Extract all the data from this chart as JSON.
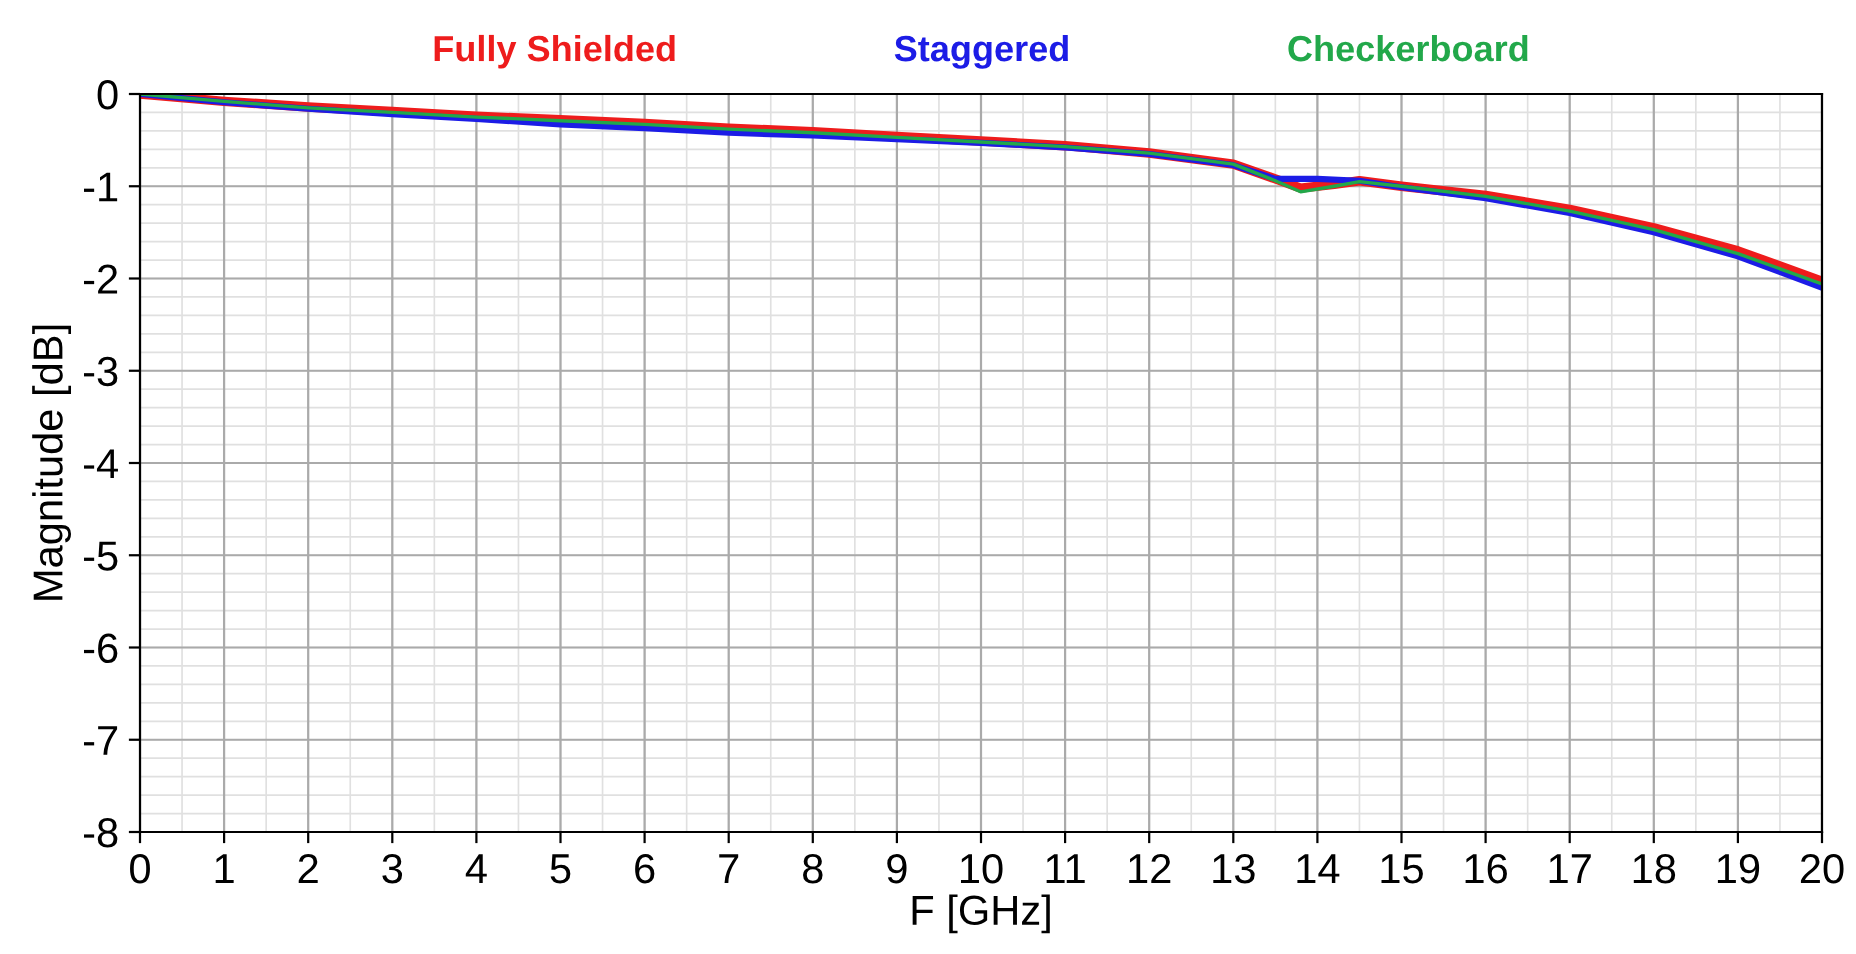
{
  "chart_data": {
    "type": "line",
    "xlabel": "F [GHz]",
    "ylabel": "Magnitude [dB]",
    "xlim": [
      0,
      20
    ],
    "ylim": [
      -8,
      0
    ],
    "xticks": [
      0,
      1,
      2,
      3,
      4,
      5,
      6,
      7,
      8,
      9,
      10,
      11,
      12,
      13,
      14,
      15,
      16,
      17,
      18,
      19,
      20
    ],
    "yticks": [
      -8,
      -7,
      -6,
      -5,
      -4,
      -3,
      -2,
      -1,
      0
    ],
    "grid": true,
    "legend": "top",
    "line_style": "solid",
    "marker": "none",
    "series": [
      {
        "name": "Fully Shielded",
        "color": "#ee1c1c",
        "x": [
          0,
          1,
          2,
          3,
          4,
          5,
          6,
          7,
          8,
          9,
          10,
          11,
          12,
          13,
          13.5,
          13.8,
          14.2,
          14.5,
          15,
          16,
          17,
          18,
          19,
          20
        ],
        "values": [
          0,
          -0.08,
          -0.14,
          -0.19,
          -0.24,
          -0.28,
          -0.32,
          -0.37,
          -0.41,
          -0.46,
          -0.51,
          -0.56,
          -0.64,
          -0.76,
          -0.92,
          -1.02,
          -0.98,
          -0.94,
          -1.0,
          -1.1,
          -1.25,
          -1.45,
          -1.7,
          -2.03
        ]
      },
      {
        "name": "Staggered",
        "color": "#1c1ce6",
        "x": [
          0,
          1,
          2,
          3,
          4,
          5,
          6,
          7,
          8,
          9,
          10,
          11,
          12,
          13,
          13.5,
          14,
          14.5,
          15,
          16,
          17,
          18,
          19,
          20
        ],
        "values": [
          0,
          -0.09,
          -0.16,
          -0.22,
          -0.27,
          -0.33,
          -0.37,
          -0.42,
          -0.45,
          -0.49,
          -0.53,
          -0.58,
          -0.65,
          -0.77,
          -0.92,
          -0.92,
          -0.94,
          -1.01,
          -1.13,
          -1.29,
          -1.5,
          -1.76,
          -2.1
        ]
      },
      {
        "name": "Checkerboard",
        "color": "#22a84a",
        "x": [
          0,
          1,
          2,
          3,
          4,
          5,
          6,
          7,
          8,
          9,
          10,
          11,
          12,
          13,
          13.5,
          13.8,
          14.2,
          14.5,
          15,
          16,
          17,
          18,
          19,
          20
        ],
        "values": [
          0,
          -0.08,
          -0.15,
          -0.2,
          -0.25,
          -0.29,
          -0.33,
          -0.38,
          -0.42,
          -0.47,
          -0.52,
          -0.57,
          -0.64,
          -0.76,
          -0.94,
          -1.06,
          -1.0,
          -0.95,
          -1.0,
          -1.11,
          -1.27,
          -1.47,
          -1.73,
          -2.06
        ]
      }
    ]
  }
}
